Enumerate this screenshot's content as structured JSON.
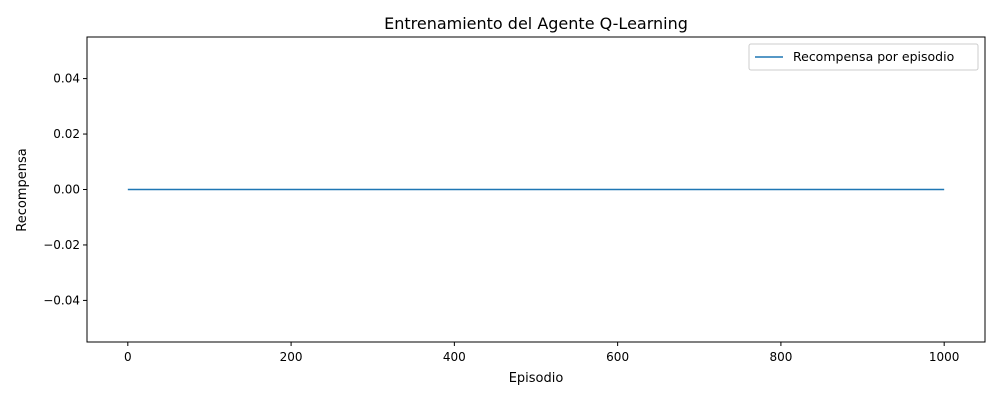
{
  "chart_data": {
    "type": "line",
    "title": "Entrenamiento del Agente Q-Learning",
    "xlabel": "Episodio",
    "ylabel": "Recompensa",
    "xlim": [
      -50,
      1050
    ],
    "ylim": [
      -0.055,
      0.055
    ],
    "x_ticks": [
      0,
      200,
      400,
      600,
      800,
      1000
    ],
    "x_tick_labels": [
      "0",
      "200",
      "400",
      "600",
      "800",
      "1000"
    ],
    "y_ticks": [
      0.04,
      0.02,
      0.0,
      -0.02,
      -0.04
    ],
    "y_tick_labels": [
      "0.04",
      "0.02",
      "0.00",
      "−0.02",
      "−0.04"
    ],
    "grid": false,
    "legend_position": "top-right",
    "series": [
      {
        "name": "Recompensa por episodio",
        "color": "#1f77b4",
        "x": [
          0,
          1000
        ],
        "y": [
          0,
          0
        ]
      }
    ]
  }
}
